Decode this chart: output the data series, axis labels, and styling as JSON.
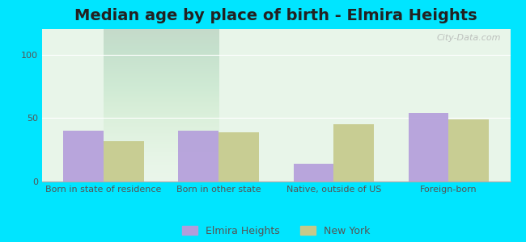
{
  "title": "Median age by place of birth - Elmira Heights",
  "categories": [
    "Born in state of residence",
    "Born in other state",
    "Native, outside of US",
    "Foreign-born"
  ],
  "elmira_values": [
    40,
    40,
    14,
    54
  ],
  "ny_values": [
    32,
    39,
    45,
    49
  ],
  "elmira_color": "#b39ddb",
  "ny_color": "#c5c98a",
  "background_outer": "#00e5ff",
  "background_inner_top": "#e8f5e9",
  "background_inner_bottom": "#f0f7e6",
  "ylim": [
    0,
    120
  ],
  "yticks": [
    0,
    50,
    100
  ],
  "bar_width": 0.35,
  "title_fontsize": 14,
  "tick_fontsize": 8,
  "legend_fontsize": 9,
  "watermark": "City-Data.com"
}
